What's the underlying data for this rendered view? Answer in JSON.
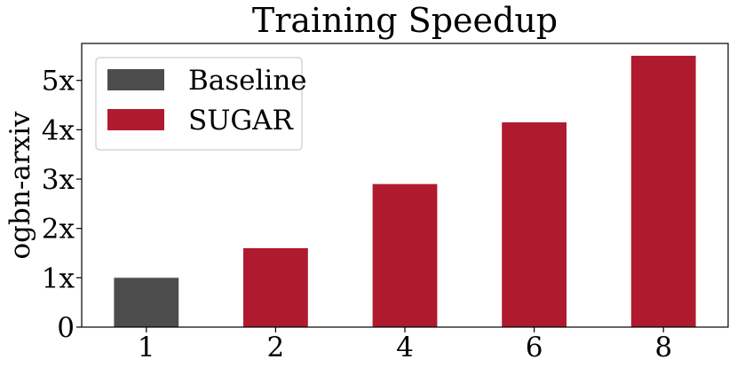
{
  "chart_data": {
    "type": "bar",
    "title": "Training Speedup",
    "xlabel": "",
    "ylabel": "ogbn-arxiv",
    "categories": [
      "1",
      "2",
      "4",
      "6",
      "8"
    ],
    "values": [
      1.0,
      1.6,
      2.9,
      4.15,
      5.5
    ],
    "bar_series": [
      "Baseline",
      "SUGAR",
      "SUGAR",
      "SUGAR",
      "SUGAR"
    ],
    "series": [
      {
        "name": "Baseline",
        "color": "#4d4d4d"
      },
      {
        "name": "SUGAR",
        "color": "#b01a2e"
      }
    ],
    "yticks": [
      0,
      1,
      2,
      3,
      4,
      5
    ],
    "ytick_labels": [
      "0",
      "1x",
      "2x",
      "3x",
      "4x",
      "5x"
    ],
    "ylim": [
      0,
      5.75
    ],
    "grid": false,
    "legend_position": "top-left"
  }
}
